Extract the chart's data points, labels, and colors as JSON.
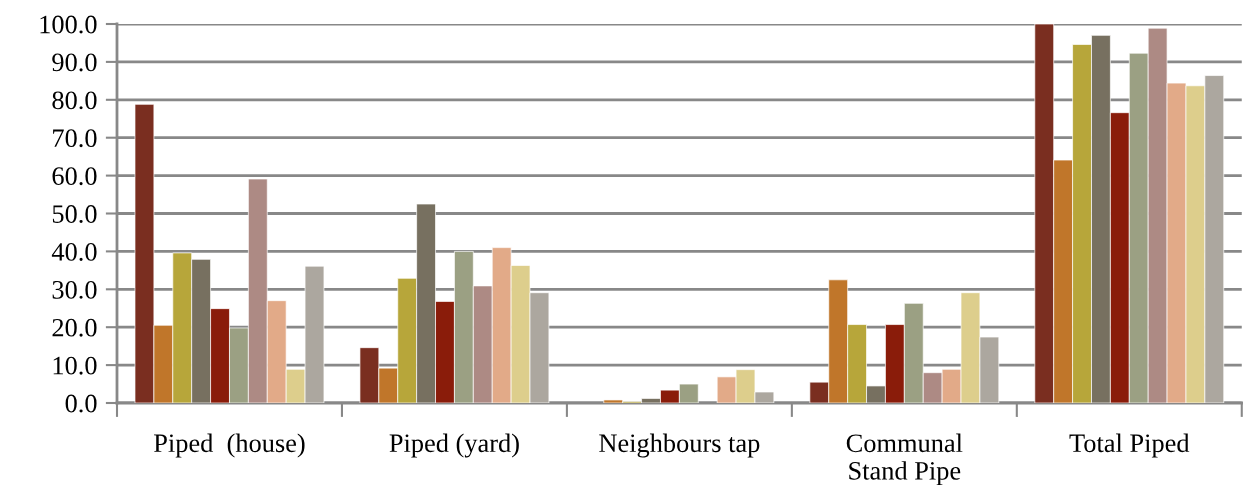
{
  "chart_data": {
    "type": "bar",
    "categories": [
      "Piped  (house)",
      "Piped (yard)",
      "Neighbours tap",
      "Communal\nStand Pipe",
      "Total Piped"
    ],
    "series": [
      {
        "color": "#7a2e20",
        "values": [
          78.8,
          14.6,
          null,
          5.5,
          100.0
        ]
      },
      {
        "color": "#c0762a",
        "values": [
          20.5,
          9.2,
          0.8,
          32.5,
          64.1
        ]
      },
      {
        "color": "#b7a63a",
        "values": [
          39.6,
          32.9,
          0.4,
          20.7,
          94.6
        ]
      },
      {
        "color": "#777060",
        "values": [
          37.9,
          52.5,
          1.2,
          4.5,
          97.0
        ]
      },
      {
        "color": "#8a1c0a",
        "values": [
          24.9,
          26.8,
          3.4,
          20.7,
          76.6
        ]
      },
      {
        "color": "#9ba083",
        "values": [
          19.8,
          40.0,
          5.0,
          26.3,
          92.3
        ]
      },
      {
        "color": "#ad8a84",
        "values": [
          59.1,
          30.9,
          null,
          8.0,
          98.9
        ]
      },
      {
        "color": "#e2aa88",
        "values": [
          27.0,
          41.0,
          6.9,
          8.9,
          84.4
        ]
      },
      {
        "color": "#ddce8c",
        "values": [
          8.9,
          36.3,
          8.8,
          29.1,
          83.7
        ]
      },
      {
        "color": "#aca79f",
        "values": [
          36.1,
          29.1,
          2.9,
          17.4,
          86.4
        ]
      }
    ],
    "ylim": [
      0,
      100
    ],
    "yticks": [
      {
        "value": 0,
        "label": "0.0"
      },
      {
        "value": 10,
        "label": "10.0"
      },
      {
        "value": 20,
        "label": "20.0"
      },
      {
        "value": 30,
        "label": "30.0"
      },
      {
        "value": 40,
        "label": "40.0"
      },
      {
        "value": 50,
        "label": "50.0"
      },
      {
        "value": 60,
        "label": "60.0"
      },
      {
        "value": 70,
        "label": "70.0"
      },
      {
        "value": 80,
        "label": "80.0"
      },
      {
        "value": 90,
        "label": "90.0"
      },
      {
        "value": 100,
        "label": "100.0"
      }
    ],
    "grid": "y",
    "legend": false
  }
}
